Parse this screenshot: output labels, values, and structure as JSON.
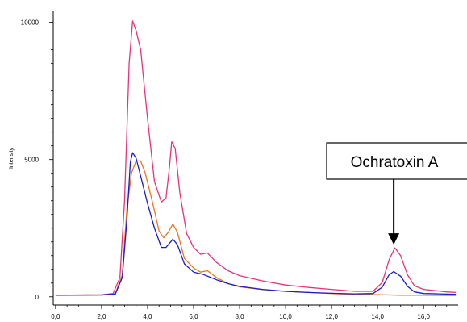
{
  "chart_data": {
    "type": "line",
    "title": "",
    "xlabel": "",
    "ylabel": "Intensity",
    "xlim": [
      -0.1,
      17.5
    ],
    "ylim": [
      -300,
      10400
    ],
    "x_ticks": [
      0,
      2,
      4,
      6,
      8,
      10,
      12,
      14,
      16
    ],
    "x_tick_labels": [
      "0,0",
      "2,0",
      "4,0",
      "6,0",
      "8,0",
      "10,0",
      "12,0",
      "14,0",
      "16,0"
    ],
    "y_ticks": [
      0,
      5000,
      10000
    ],
    "y_tick_labels": [
      "0",
      "5000",
      "10000"
    ],
    "grid": false,
    "legend": "none",
    "annotation": {
      "text": "Ochratoxin A",
      "x": 14.7,
      "y": 1900
    },
    "series": [
      {
        "color": "#e8327a",
        "points": [
          [
            0,
            60
          ],
          [
            2.0,
            70
          ],
          [
            2.5,
            120
          ],
          [
            2.8,
            700
          ],
          [
            3.0,
            3500
          ],
          [
            3.2,
            8500
          ],
          [
            3.35,
            10050
          ],
          [
            3.5,
            9700
          ],
          [
            3.7,
            9000
          ],
          [
            4.0,
            6500
          ],
          [
            4.3,
            4200
          ],
          [
            4.6,
            3450
          ],
          [
            4.8,
            3600
          ],
          [
            4.95,
            4700
          ],
          [
            5.05,
            5650
          ],
          [
            5.2,
            5400
          ],
          [
            5.4,
            3800
          ],
          [
            5.7,
            2300
          ],
          [
            6.0,
            1800
          ],
          [
            6.3,
            1550
          ],
          [
            6.6,
            1600
          ],
          [
            7.0,
            1250
          ],
          [
            7.5,
            950
          ],
          [
            8.0,
            770
          ],
          [
            9.0,
            580
          ],
          [
            10.0,
            430
          ],
          [
            11.0,
            340
          ],
          [
            12.0,
            270
          ],
          [
            13.0,
            200
          ],
          [
            13.8,
            200
          ],
          [
            14.2,
            520
          ],
          [
            14.5,
            1350
          ],
          [
            14.75,
            1780
          ],
          [
            15.0,
            1500
          ],
          [
            15.3,
            800
          ],
          [
            15.6,
            400
          ],
          [
            16.0,
            270
          ],
          [
            17.0,
            180
          ],
          [
            17.4,
            160
          ]
        ]
      },
      {
        "color": "#e87722",
        "points": [
          [
            0,
            60
          ],
          [
            2.0,
            60
          ],
          [
            2.6,
            120
          ],
          [
            2.9,
            800
          ],
          [
            3.1,
            3200
          ],
          [
            3.3,
            4500
          ],
          [
            3.5,
            4950
          ],
          [
            3.7,
            4950
          ],
          [
            3.9,
            4500
          ],
          [
            4.2,
            3500
          ],
          [
            4.5,
            2400
          ],
          [
            4.7,
            2150
          ],
          [
            4.9,
            2350
          ],
          [
            5.1,
            2650
          ],
          [
            5.3,
            2350
          ],
          [
            5.6,
            1400
          ],
          [
            6.0,
            1050
          ],
          [
            6.3,
            900
          ],
          [
            6.6,
            950
          ],
          [
            7.0,
            700
          ],
          [
            7.5,
            480
          ],
          [
            8.0,
            360
          ],
          [
            9.0,
            260
          ],
          [
            10.0,
            200
          ],
          [
            11.0,
            160
          ],
          [
            12.0,
            120
          ],
          [
            13.0,
            90
          ],
          [
            14.0,
            80
          ],
          [
            15.0,
            60
          ],
          [
            16.0,
            55
          ],
          [
            17.4,
            50
          ]
        ]
      },
      {
        "color": "#1c1cc8",
        "points": [
          [
            0,
            60
          ],
          [
            2.0,
            70
          ],
          [
            2.6,
            100
          ],
          [
            2.9,
            700
          ],
          [
            3.1,
            2800
          ],
          [
            3.25,
            4900
          ],
          [
            3.35,
            5250
          ],
          [
            3.5,
            5050
          ],
          [
            3.7,
            4400
          ],
          [
            4.0,
            3400
          ],
          [
            4.3,
            2500
          ],
          [
            4.6,
            1800
          ],
          [
            4.8,
            1800
          ],
          [
            5.0,
            2000
          ],
          [
            5.1,
            2100
          ],
          [
            5.3,
            1900
          ],
          [
            5.6,
            1200
          ],
          [
            6.0,
            900
          ],
          [
            6.4,
            820
          ],
          [
            7.0,
            620
          ],
          [
            7.5,
            480
          ],
          [
            8.0,
            380
          ],
          [
            9.0,
            270
          ],
          [
            10.0,
            200
          ],
          [
            11.0,
            160
          ],
          [
            12.0,
            130
          ],
          [
            13.0,
            110
          ],
          [
            13.8,
            120
          ],
          [
            14.2,
            350
          ],
          [
            14.5,
            800
          ],
          [
            14.7,
            920
          ],
          [
            15.0,
            750
          ],
          [
            15.3,
            380
          ],
          [
            15.6,
            180
          ],
          [
            16.0,
            120
          ],
          [
            17.0,
            100
          ],
          [
            17.4,
            90
          ]
        ]
      }
    ]
  }
}
